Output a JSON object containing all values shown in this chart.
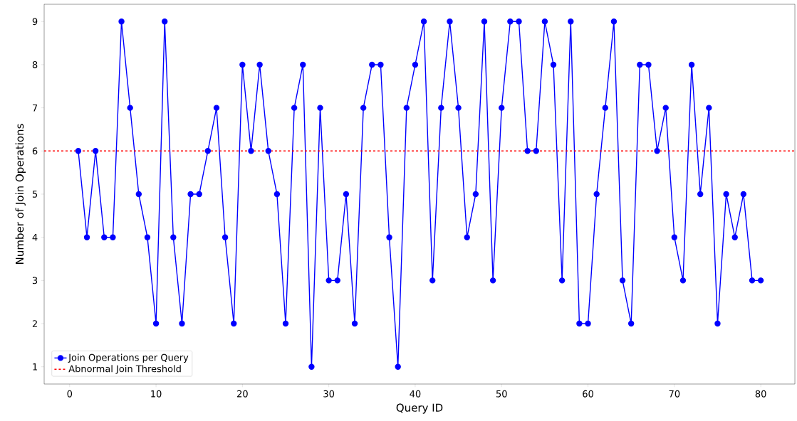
{
  "chart_data": {
    "type": "line",
    "xlabel": "Query ID",
    "ylabel": "Number of Join Operations",
    "x": [
      1,
      2,
      3,
      4,
      5,
      6,
      7,
      8,
      9,
      10,
      11,
      12,
      13,
      14,
      15,
      16,
      17,
      18,
      19,
      20,
      21,
      22,
      23,
      24,
      25,
      26,
      27,
      28,
      29,
      30,
      31,
      32,
      33,
      34,
      35,
      36,
      37,
      38,
      39,
      40,
      41,
      42,
      43,
      44,
      45,
      46,
      47,
      48,
      49,
      50,
      51,
      52,
      53,
      54,
      55,
      56,
      57,
      58,
      59,
      60,
      61,
      62,
      63,
      64,
      65,
      66,
      67,
      68,
      69,
      70,
      71,
      72,
      73,
      74,
      75,
      76,
      77,
      78,
      79,
      80
    ],
    "series": [
      {
        "name": "Join Operations per Query",
        "color": "#0000ff",
        "values": [
          6,
          4,
          6,
          4,
          4,
          9,
          7,
          5,
          4,
          2,
          9,
          4,
          2,
          5,
          5,
          6,
          7,
          4,
          2,
          8,
          6,
          8,
          6,
          5,
          2,
          7,
          8,
          1,
          7,
          3,
          3,
          5,
          2,
          7,
          8,
          8,
          4,
          1,
          7,
          8,
          9,
          3,
          7,
          9,
          7,
          4,
          5,
          9,
          3,
          7,
          9,
          9,
          6,
          6,
          9,
          8,
          3,
          9,
          2,
          2,
          5,
          7,
          9,
          3,
          2,
          8,
          8,
          6,
          7,
          4,
          3,
          8,
          5,
          7,
          2,
          5,
          4,
          5,
          3,
          3
        ]
      }
    ],
    "ref_lines": [
      {
        "axis": "y",
        "value": 6,
        "label": "Abnormal Join Threshold",
        "color": "#ff0000",
        "line_style": "dashed"
      }
    ],
    "xlim": [
      -2.95,
      83.95
    ],
    "ylim": [
      0.6,
      9.4
    ],
    "xticks": [
      0,
      10,
      20,
      30,
      40,
      50,
      60,
      70,
      80
    ],
    "yticks": [
      1,
      2,
      3,
      4,
      5,
      6,
      7,
      8,
      9
    ],
    "grid": false,
    "legend": "bottom left",
    "marker": "circle",
    "line_style": "solid"
  }
}
